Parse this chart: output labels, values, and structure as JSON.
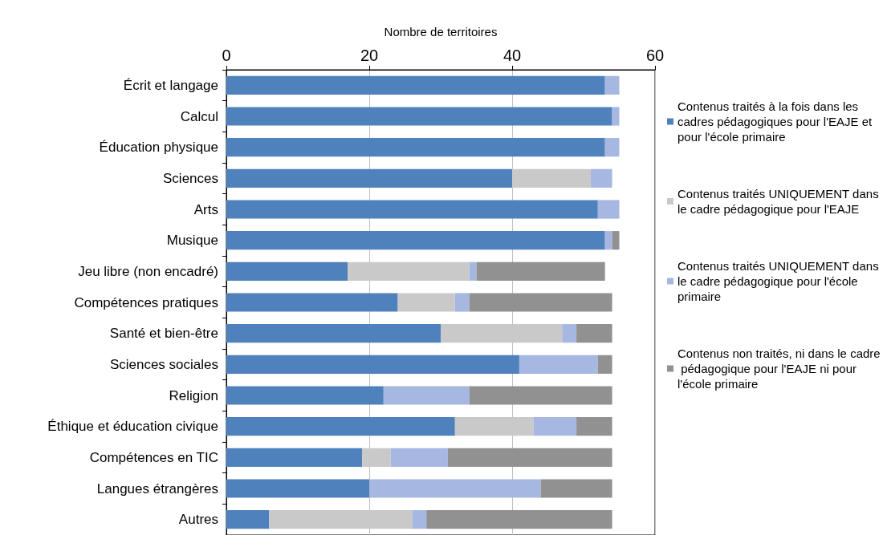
{
  "chart_data": {
    "type": "bar",
    "orientation": "horizontal",
    "stacked": true,
    "xlabel": "Nombre de territoires",
    "xlim": [
      0,
      60
    ],
    "xticks": [
      0,
      20,
      40,
      60
    ],
    "grid": "x",
    "legend": "right",
    "categories": [
      "Écrit et langage",
      "Calcul",
      "Éducation physique",
      "Sciences",
      "Arts",
      "Musique",
      "Jeu libre (non encadré)",
      "Compétences pratiques",
      "Santé et bien-être",
      "Sciences sociales",
      "Religion",
      "Éthique et éducation civique",
      "Compétences en TIC",
      "Langues étrangères",
      "Autres"
    ],
    "series": [
      {
        "name": "Contenus traités à la fois dans les cadres pédagogiques pour l'EAJE et pour l'école primaire",
        "color": "#4f81bd",
        "values": [
          53,
          54,
          53,
          40,
          52,
          53,
          17,
          24,
          30,
          41,
          22,
          32,
          19,
          20,
          6
        ]
      },
      {
        "name": "Contenus traités UNIQUEMENT dans le cadre pédagogique pour l'EAJE",
        "color": "#c9c9c9",
        "values": [
          0,
          0,
          0,
          11,
          0,
          0,
          17,
          8,
          17,
          0,
          0,
          11,
          4,
          0,
          20
        ]
      },
      {
        "name": "Contenus traités UNIQUEMENT dans le cadre pédagogique pour l'école primaire",
        "color": "#a6b7e1",
        "values": [
          2,
          1,
          2,
          3,
          3,
          1,
          1,
          2,
          2,
          11,
          12,
          6,
          8,
          24,
          2
        ]
      },
      {
        "name": "Contenus non traités, ni dans le cadre pédagogique pour l'EAJE ni pour l'école primaire",
        "color": "#919191",
        "values": [
          0,
          0,
          0,
          0,
          0,
          1,
          18,
          20,
          5,
          2,
          20,
          5,
          23,
          10,
          26
        ]
      }
    ]
  }
}
